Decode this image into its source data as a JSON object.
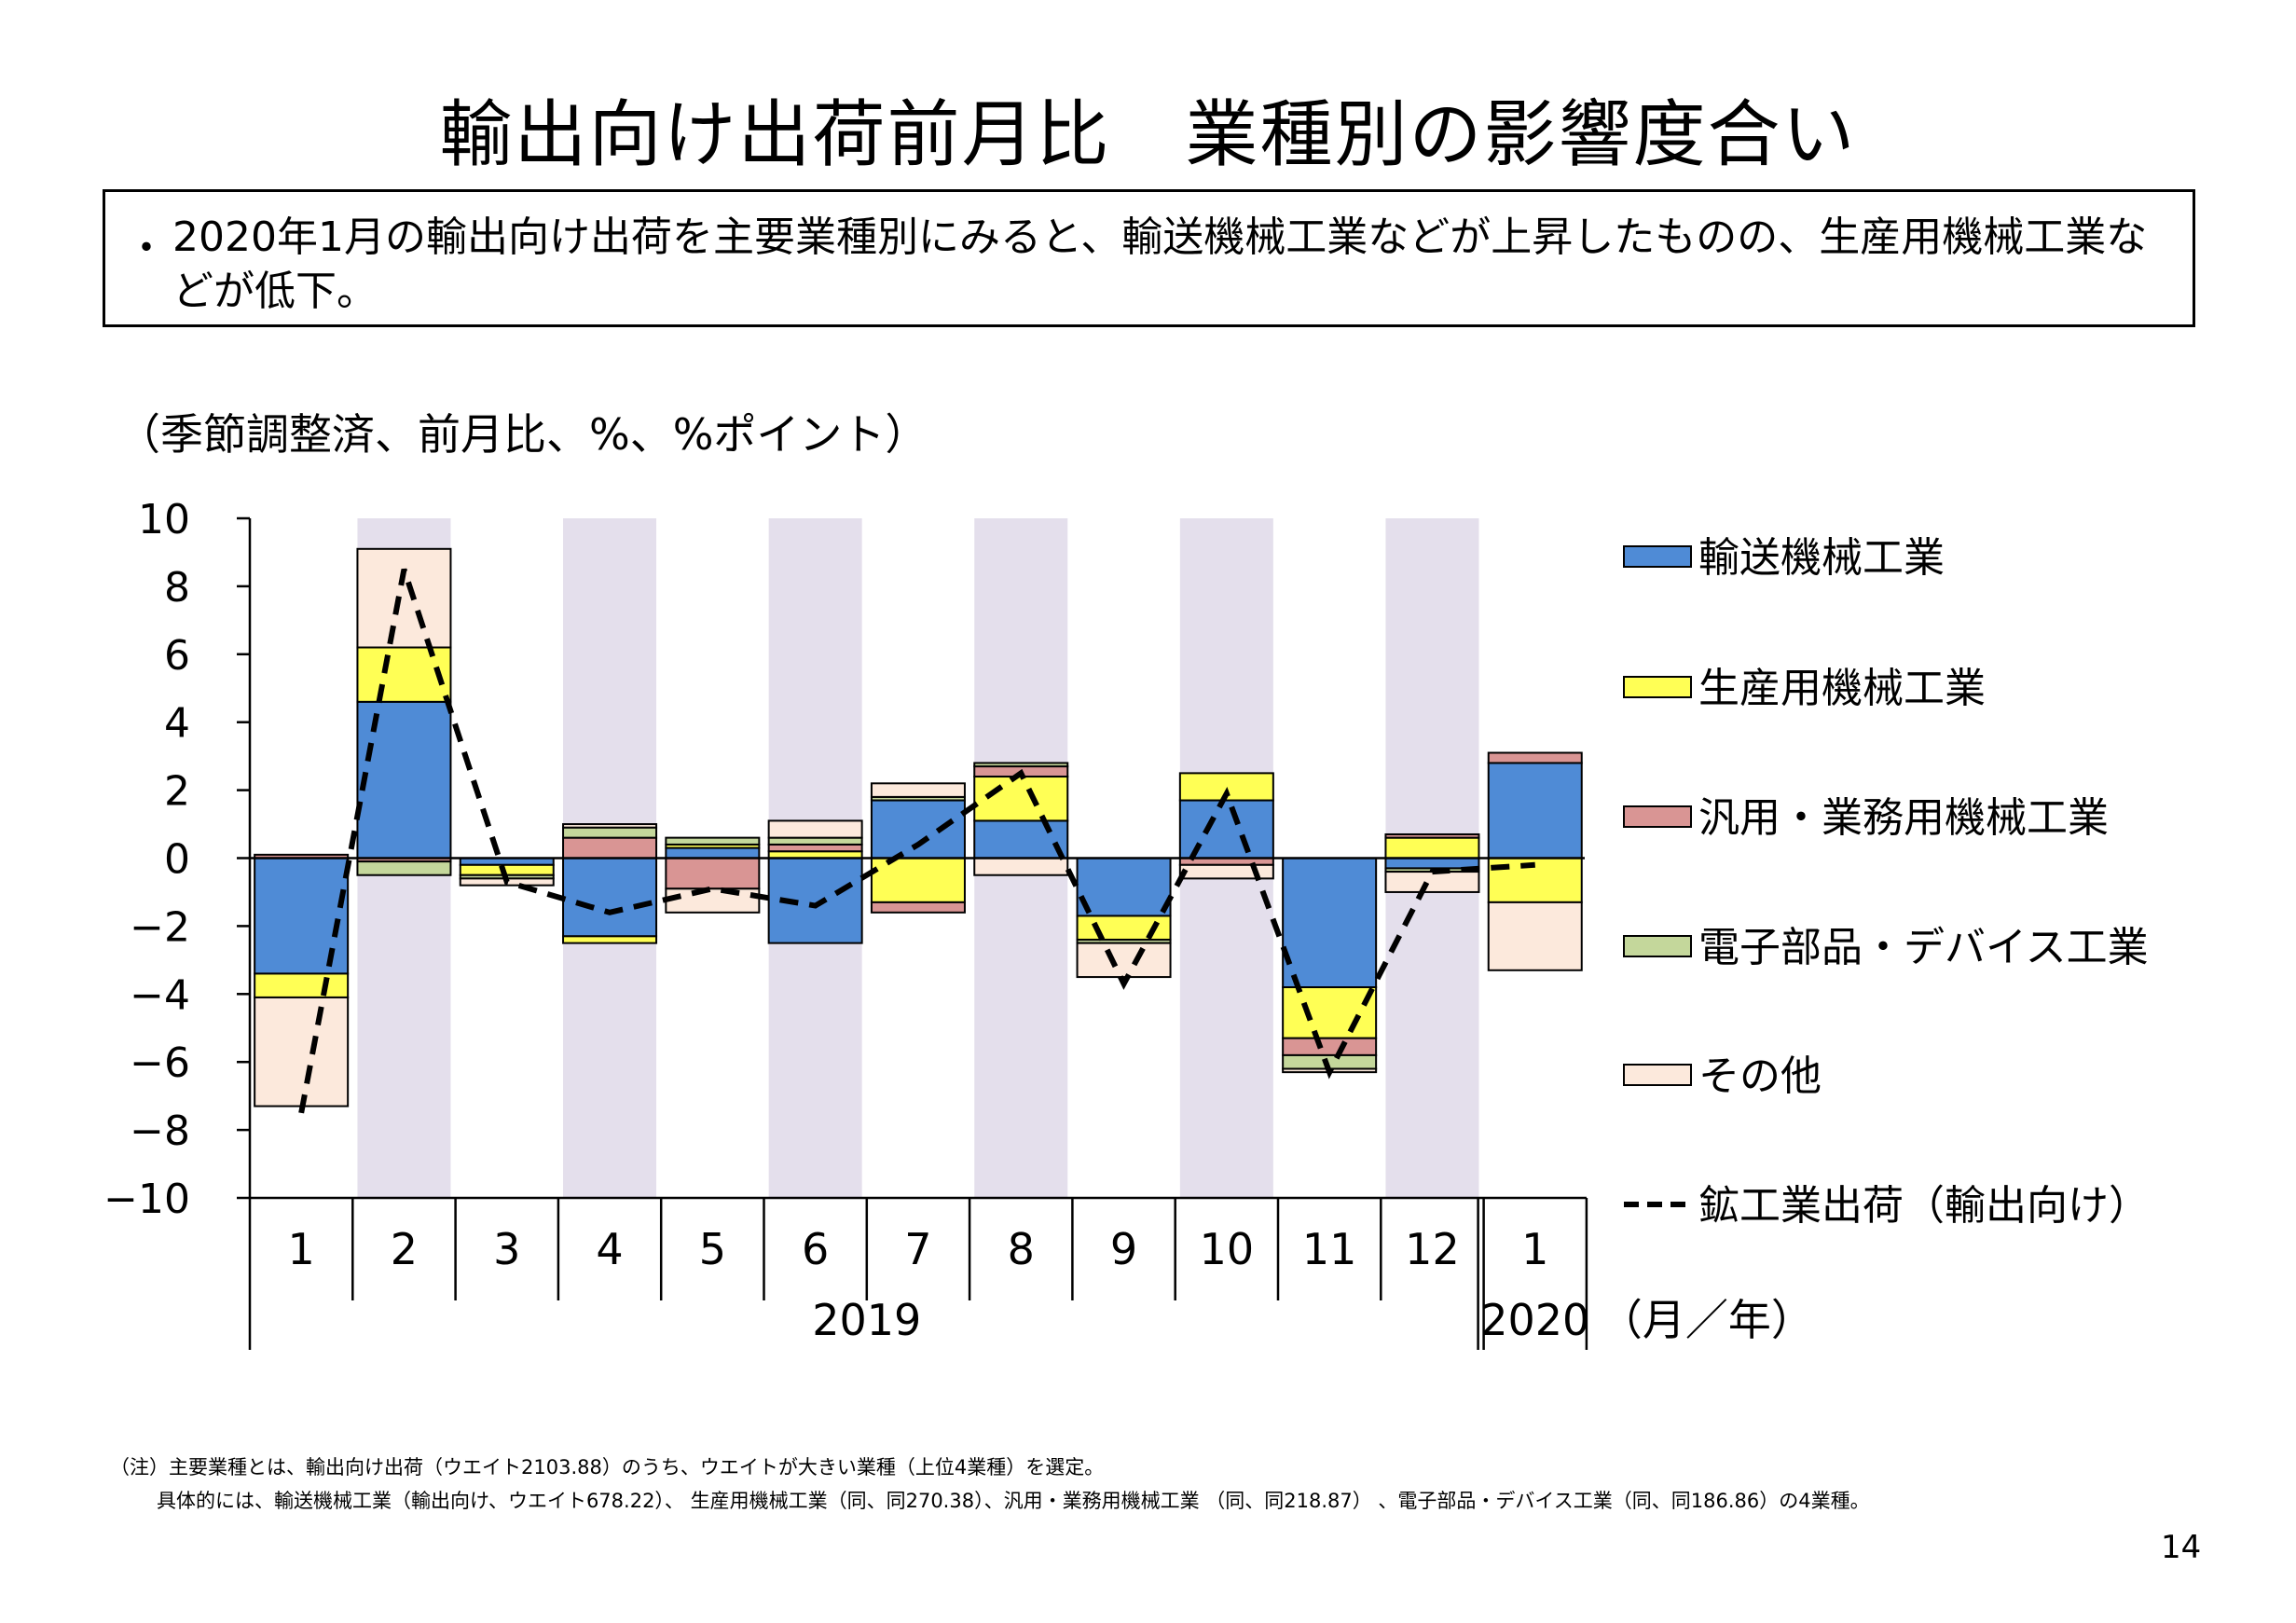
{
  "title": "輸出向け出荷前月比　業種別の影響度合い",
  "summary": {
    "bullet": "・",
    "text": "2020年1月の輸出向け出荷を主要業種別にみると、輸送機械工業などが上昇したものの、生産用機械工業などが低下。"
  },
  "unit_note": "（季節調整済、前月比、%、%ポイント）",
  "footnote": {
    "line1": "（注）主要業種とは、輸出向け出荷（ウエイト2103.88）のうち、ウエイトが大きい業種（上位4業種）を選定。",
    "line2": "具体的には、輸送機械工業（輸出向け、ウエイト678.22）、 生産用機械工業（同、同270.38）、汎用・業務用機械工業 （同、同218.87） 、電子部品・デバイス工業（同、同186.86）の4業種。"
  },
  "page_number": "14",
  "colors": {
    "transport": "#4f8bd6",
    "production": "#ffff55",
    "general": "#d99594",
    "electronic": "#c4d79b",
    "other": "#fce9dc",
    "shade": "#e4dfec",
    "line": "#000000"
  },
  "chart_data": {
    "type": "bar",
    "stacked": true,
    "categories": [
      "1",
      "2",
      "3",
      "4",
      "5",
      "6",
      "7",
      "8",
      "9",
      "10",
      "11",
      "12",
      "1"
    ],
    "year_labels": [
      {
        "label": "2019",
        "from": 0,
        "to": 11
      },
      {
        "label": "2020",
        "from": 12,
        "to": 12
      }
    ],
    "x_unit_label": "（月／年）",
    "ylim": [
      -10,
      10
    ],
    "yticks": [
      10,
      8,
      6,
      4,
      2,
      0,
      -2,
      -4,
      -6,
      -8,
      -10
    ],
    "ytick_labels": [
      "10",
      "8",
      "6",
      "4",
      "2",
      "0",
      "−2",
      "−4",
      "−6",
      "−8",
      "−10"
    ],
    "shaded_categories": [
      1,
      3,
      5,
      7,
      9,
      11
    ],
    "legend_position": "right",
    "series": [
      {
        "name": "輸送機械工業",
        "key": "transport",
        "values": [
          -3.4,
          4.6,
          -0.2,
          -2.3,
          0.3,
          -2.5,
          1.7,
          1.1,
          -1.7,
          1.7,
          -3.8,
          -0.3,
          2.8
        ]
      },
      {
        "name": "生産用機械工業",
        "key": "production",
        "values": [
          -0.7,
          1.6,
          -0.3,
          -0.2,
          0.1,
          0.2,
          -1.3,
          1.3,
          -0.7,
          0.8,
          -1.5,
          0.6,
          -1.3
        ]
      },
      {
        "name": "汎用・業務用機械工業",
        "key": "general",
        "values": [
          0.1,
          -0.1,
          0.0,
          0.6,
          -0.9,
          0.2,
          -0.3,
          0.3,
          0.0,
          -0.2,
          -0.5,
          0.1,
          0.3
        ]
      },
      {
        "name": "電子部品・デバイス工業",
        "key": "electronic",
        "values": [
          0.0,
          -0.4,
          -0.1,
          0.3,
          0.2,
          0.2,
          0.1,
          0.1,
          -0.1,
          0.0,
          -0.4,
          -0.1,
          0.0
        ]
      },
      {
        "name": "その他",
        "key": "other",
        "values": [
          -3.2,
          2.9,
          -0.2,
          0.1,
          -0.7,
          0.5,
          0.4,
          -0.5,
          -1.0,
          -0.4,
          -0.1,
          -0.6,
          -2.0
        ]
      }
    ],
    "line_series": {
      "name": "鉱工業出荷（輸出向け）",
      "values": [
        -7.5,
        8.5,
        -0.7,
        -1.6,
        -0.9,
        -1.4,
        0.4,
        2.5,
        -3.7,
        1.9,
        -6.3,
        -0.4,
        -0.2
      ]
    }
  }
}
